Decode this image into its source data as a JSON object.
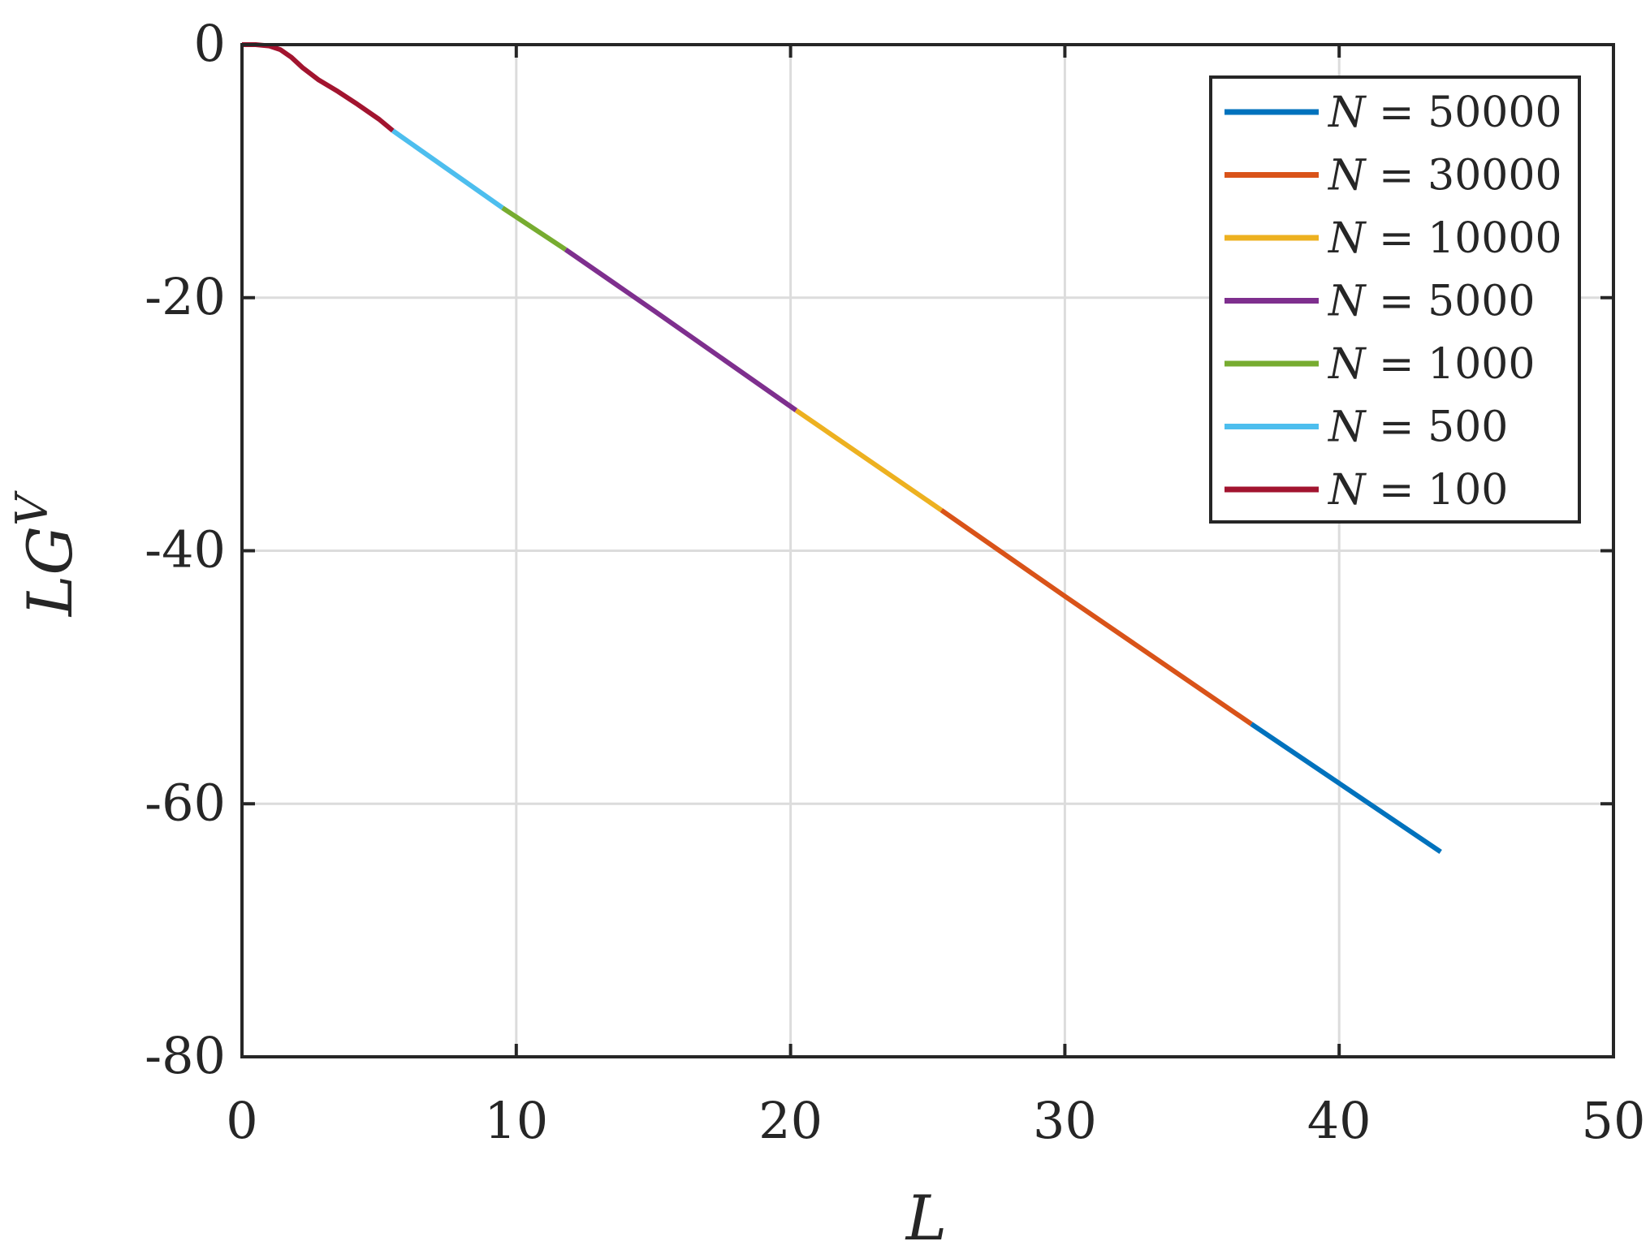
{
  "chart_data": {
    "type": "line",
    "xlabel": "L",
    "ylabel": "LG",
    "ylabel_sup": "V",
    "xlim": [
      0,
      50
    ],
    "ylim": [
      -80,
      0
    ],
    "xticks": [
      0,
      10,
      20,
      30,
      40,
      50
    ],
    "yticks": [
      0,
      -20,
      -40,
      -60,
      -80
    ],
    "xtick_labels": [
      "0",
      "10",
      "20",
      "30",
      "40",
      "50"
    ],
    "ytick_labels": [
      "0",
      "-20",
      "-40",
      "-60",
      "-80"
    ],
    "grid": true,
    "legend_position": "top-right",
    "series": [
      {
        "name": "N = 50000",
        "name_var": "N",
        "name_eq": " = ",
        "name_val": "50000",
        "color": "#0072BD",
        "x": [
          36.8,
          43.7
        ],
        "y": [
          -53.7,
          -63.8
        ]
      },
      {
        "name": "N = 30000",
        "name_var": "N",
        "name_eq": " = ",
        "name_val": "30000",
        "color": "#D95319",
        "x": [
          25.5,
          30.0,
          36.8
        ],
        "y": [
          -36.8,
          -43.6,
          -53.7
        ]
      },
      {
        "name": "N = 10000",
        "name_var": "N",
        "name_eq": " = ",
        "name_val": "10000",
        "color": "#EDB120",
        "x": [
          20.2,
          25.5
        ],
        "y": [
          -28.9,
          -36.8
        ]
      },
      {
        "name": "N = 5000",
        "name_var": "N",
        "name_eq": " = ",
        "name_val": "5000",
        "color": "#7E2F8E",
        "x": [
          11.8,
          15.0,
          20.2
        ],
        "y": [
          -16.2,
          -21.0,
          -28.9
        ]
      },
      {
        "name": "N = 1000",
        "name_var": "N",
        "name_eq": " = ",
        "name_val": "1000",
        "color": "#77AC30",
        "x": [
          9.5,
          11.8
        ],
        "y": [
          -12.9,
          -16.2
        ]
      },
      {
        "name": "N = 500",
        "name_var": "N",
        "name_eq": " = ",
        "name_val": "500",
        "color": "#4DBEEE",
        "x": [
          5.5,
          9.5
        ],
        "y": [
          -6.8,
          -12.9
        ]
      },
      {
        "name": "N = 100",
        "name_var": "N",
        "name_eq": " = ",
        "name_val": "100",
        "color": "#A2142F",
        "x": [
          0,
          0.5,
          1.0,
          1.4,
          1.8,
          2.2,
          2.8,
          3.5,
          4.2,
          5.0,
          5.5
        ],
        "y": [
          0,
          0,
          -0.1,
          -0.4,
          -1.0,
          -1.8,
          -2.8,
          -3.7,
          -4.7,
          -5.9,
          -6.8
        ]
      }
    ]
  }
}
